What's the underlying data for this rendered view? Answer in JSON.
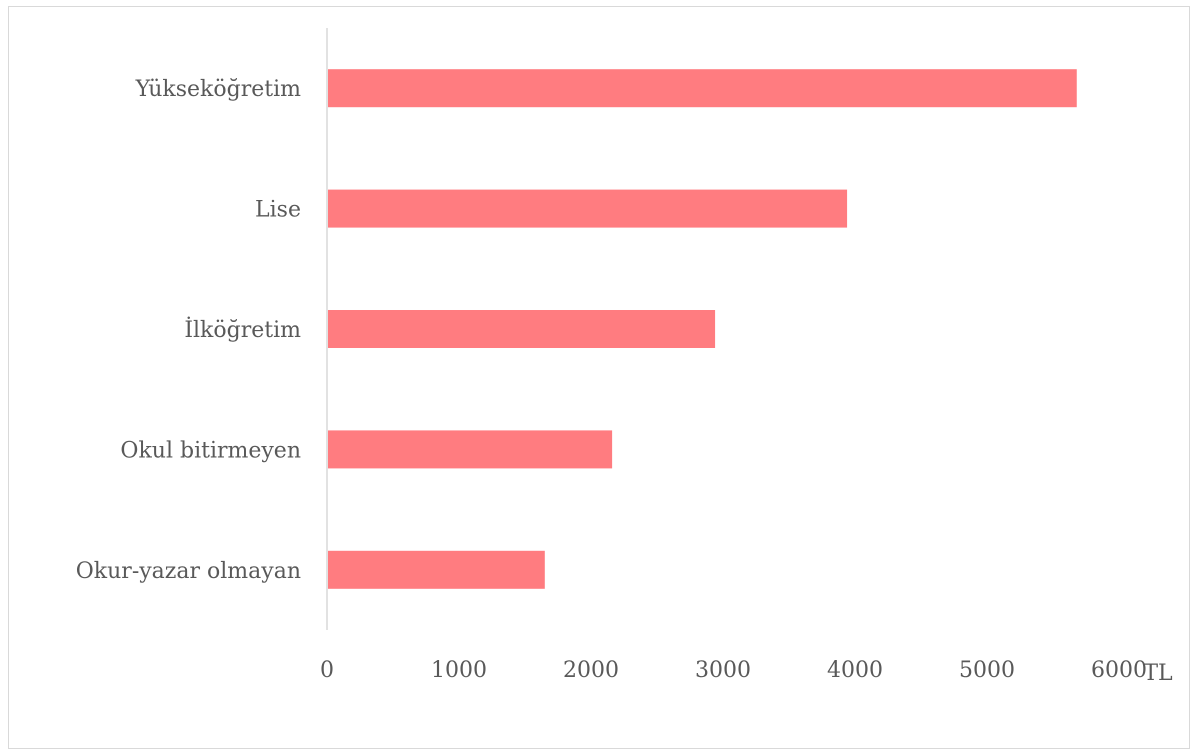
{
  "chart_data": {
    "type": "bar",
    "orientation": "horizontal",
    "categories": [
      "Yükseköğretim",
      "Lise",
      "İlköğretim",
      "Okul bitirmeyen",
      "Okur-yazar olmayan"
    ],
    "values": [
      5680,
      3940,
      2940,
      2160,
      1650
    ],
    "x_ticks": [
      "0",
      "1000",
      "2000",
      "3000",
      "4000",
      "5000",
      "6000"
    ],
    "xlim": [
      0,
      6000
    ],
    "x_unit": "TL",
    "grid": false,
    "legend": "none",
    "bar_color": "#ff7c80",
    "axis_color": "#d9d9d9",
    "text_color": "#595959"
  }
}
